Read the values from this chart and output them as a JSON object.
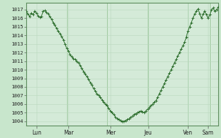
{
  "bg_color": "#c8e6cc",
  "plot_bg_color": "#d4ead8",
  "grid_minor_color": "#b8d8bc",
  "grid_major_color": "#9ec89e",
  "line_color": "#2d6e2d",
  "marker_color": "#2d6e2d",
  "ylim": [
    1003.5,
    1017.8
  ],
  "yticks": [
    1004,
    1005,
    1006,
    1007,
    1008,
    1009,
    1010,
    1011,
    1012,
    1013,
    1014,
    1015,
    1016,
    1017
  ],
  "xtick_labels": [
    "Lun",
    "Mar",
    "Mer",
    "Jeu",
    "Ven",
    "Sam"
  ],
  "xtick_fracs": [
    0.055,
    0.22,
    0.44,
    0.635,
    0.84,
    0.945
  ],
  "pressure": [
    1016.8,
    1016.5,
    1016.2,
    1016.6,
    1016.4,
    1016.8,
    1016.6,
    1016.3,
    1016.1,
    1016.2,
    1016.8,
    1016.9,
    1016.7,
    1016.5,
    1016.2,
    1015.9,
    1015.5,
    1015.2,
    1014.8,
    1014.5,
    1014.2,
    1013.9,
    1013.5,
    1013.0,
    1012.5,
    1012.2,
    1011.8,
    1011.5,
    1011.3,
    1011.2,
    1011.0,
    1010.8,
    1010.5,
    1010.2,
    1009.8,
    1009.5,
    1009.2,
    1008.9,
    1008.5,
    1008.2,
    1007.8,
    1007.5,
    1007.2,
    1007.0,
    1006.8,
    1006.5,
    1006.2,
    1006.0,
    1005.8,
    1005.5,
    1005.2,
    1005.0,
    1004.8,
    1004.5,
    1004.3,
    1004.2,
    1004.1,
    1004.0,
    1004.0,
    1004.1,
    1004.2,
    1004.3,
    1004.5,
    1004.6,
    1004.8,
    1004.9,
    1005.0,
    1005.1,
    1005.2,
    1005.1,
    1005.0,
    1005.2,
    1005.4,
    1005.6,
    1005.8,
    1006.0,
    1006.2,
    1006.4,
    1006.8,
    1007.2,
    1007.6,
    1008.0,
    1008.4,
    1008.8,
    1009.2,
    1009.6,
    1010.0,
    1010.4,
    1010.8,
    1011.2,
    1011.6,
    1012.0,
    1012.4,
    1012.8,
    1013.2,
    1013.8,
    1014.5,
    1015.0,
    1015.5,
    1016.0,
    1016.5,
    1016.8,
    1017.1,
    1016.5,
    1016.0,
    1016.5,
    1016.8,
    1016.4,
    1016.0,
    1016.4,
    1017.0,
    1017.2,
    1016.8,
    1017.0,
    1017.3
  ]
}
